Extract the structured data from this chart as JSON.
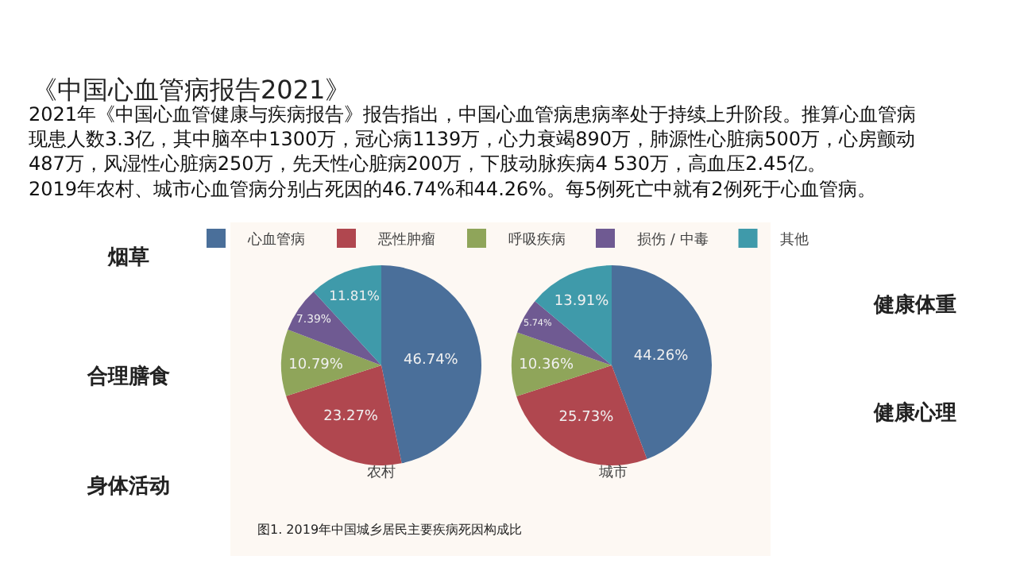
{
  "chart_data": [
    {
      "type": "pie",
      "title": "《中国心血管病报告2021》",
      "subtitle": "2021年《中国心血管健康与疾病报告》报告指出，中国心血管病患病率处于持续上升阶段。推算心血管病现患人数3.3亿，其中脑卒中1300万，冠心病1139万，心力衰竭890万，肺源性心脏病500万，心房颤动487万，风湿性心脏病250万，先天性心脏病200万，下肢动脉疾病4 530万，高血压2.45亿。\n2019年农村、城市心血管病分别占死因的46.74%和44.26%。每5例死亡中就有2例死于心血管病。",
      "xlabel": "农村",
      "categories": [
        "心血管病",
        "恶性肿瘤",
        "呼吸疾病",
        "损伤 / 中毒",
        "其他"
      ],
      "values": [
        46.74,
        23.27,
        10.79,
        7.39,
        11.81
      ],
      "colors": [
        "#4a6f9a",
        "#b0474f",
        "#8fa55a",
        "#6f5a92",
        "#3f9aaa"
      ],
      "value_labels": [
        "46.74%",
        "23.27%",
        "10.79%",
        "7.39%",
        "11.81%"
      ],
      "legend": "top",
      "annotations": [
        "烟草",
        "合理膳食",
        "身体活动",
        "健康体重",
        "健康心理",
        "图1. 2019年中国城乡居民主要疾病死因构成比"
      ]
    },
    {
      "type": "pie",
      "xlabel": "城市",
      "categories": [
        null,
        null,
        null,
        null,
        null
      ],
      "values": [
        44.26,
        25.73,
        10.36,
        5.74,
        13.91
      ],
      "colors": [
        "#4a6f9a",
        "#b0474f",
        "#8fa55a",
        "#6f5a92",
        "#3f9aaa"
      ],
      "value_labels": [
        "44.26%",
        "25.73%",
        "10.36%",
        "5.74%",
        "13.91%"
      ]
    }
  ]
}
